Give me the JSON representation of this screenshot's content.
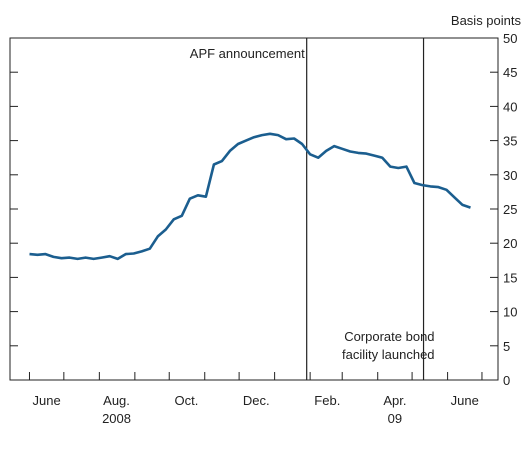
{
  "chart_data": {
    "type": "line",
    "ylabel": "Basis points",
    "ylim": [
      0,
      50
    ],
    "yticks": [
      0,
      5,
      10,
      15,
      20,
      25,
      30,
      35,
      40,
      45,
      50
    ],
    "xlim": [
      "2008-05-15",
      "2009-07-15"
    ],
    "x_ticks": [
      {
        "date": "2008-06-01",
        "label": "June"
      },
      {
        "date": "2008-08-01",
        "label": "Aug."
      },
      {
        "date": "2008-10-01",
        "label": "Oct."
      },
      {
        "date": "2008-12-01",
        "label": "Dec."
      },
      {
        "date": "2009-02-01",
        "label": "Feb."
      },
      {
        "date": "2009-04-01",
        "label": "Apr."
      },
      {
        "date": "2009-06-01",
        "label": "June"
      }
    ],
    "year_labels": [
      {
        "label": "2008",
        "date": "2008-08-01"
      },
      {
        "label": "09",
        "date": "2009-04-01"
      }
    ],
    "grid": false,
    "line_color": "#1b5e8f",
    "series": [
      {
        "x": [
          "2008-06-01",
          "2008-06-08",
          "2008-06-15",
          "2008-06-22",
          "2008-06-29",
          "2008-07-06",
          "2008-07-13",
          "2008-07-20",
          "2008-07-27",
          "2008-08-03",
          "2008-08-10",
          "2008-08-17",
          "2008-08-24",
          "2008-08-31",
          "2008-09-07",
          "2008-09-14",
          "2008-09-21",
          "2008-09-28",
          "2008-10-05",
          "2008-10-12",
          "2008-10-19",
          "2008-10-26",
          "2008-11-02",
          "2008-11-09",
          "2008-11-16",
          "2008-11-23",
          "2008-11-30",
          "2008-12-07",
          "2008-12-14",
          "2008-12-21",
          "2008-12-28",
          "2009-01-04",
          "2009-01-11",
          "2009-01-18",
          "2009-01-25",
          "2009-02-01",
          "2009-02-08",
          "2009-02-15",
          "2009-02-22",
          "2009-03-01",
          "2009-03-08",
          "2009-03-15",
          "2009-03-22",
          "2009-03-29",
          "2009-04-05",
          "2009-04-12",
          "2009-04-19",
          "2009-04-26",
          "2009-05-03",
          "2009-05-10",
          "2009-05-17",
          "2009-05-24",
          "2009-05-31",
          "2009-06-07",
          "2009-06-14",
          "2009-06-21"
        ],
        "values": [
          18.4,
          18.3,
          18.4,
          18.0,
          17.8,
          17.9,
          17.7,
          17.9,
          17.7,
          17.9,
          18.1,
          17.7,
          18.4,
          18.5,
          18.8,
          19.2,
          21.0,
          22.0,
          23.5,
          24.0,
          26.5,
          27.0,
          26.8,
          31.5,
          32.0,
          33.5,
          34.5,
          35.0,
          35.5,
          35.8,
          36.0,
          35.8,
          35.2,
          35.3,
          34.5,
          33.0,
          32.5,
          33.5,
          34.2,
          33.8,
          33.4,
          33.2,
          33.1,
          32.8,
          32.5,
          31.2,
          31.0,
          31.2,
          28.8,
          28.5,
          28.3,
          28.2,
          27.8,
          26.7,
          25.6,
          25.2
        ]
      }
    ],
    "event_lines": [
      {
        "date": "2009-01-29",
        "label": [
          "APF announcement"
        ]
      },
      {
        "date": "2009-05-11",
        "label": [
          "Corporate bond",
          "facility launched"
        ]
      }
    ]
  }
}
